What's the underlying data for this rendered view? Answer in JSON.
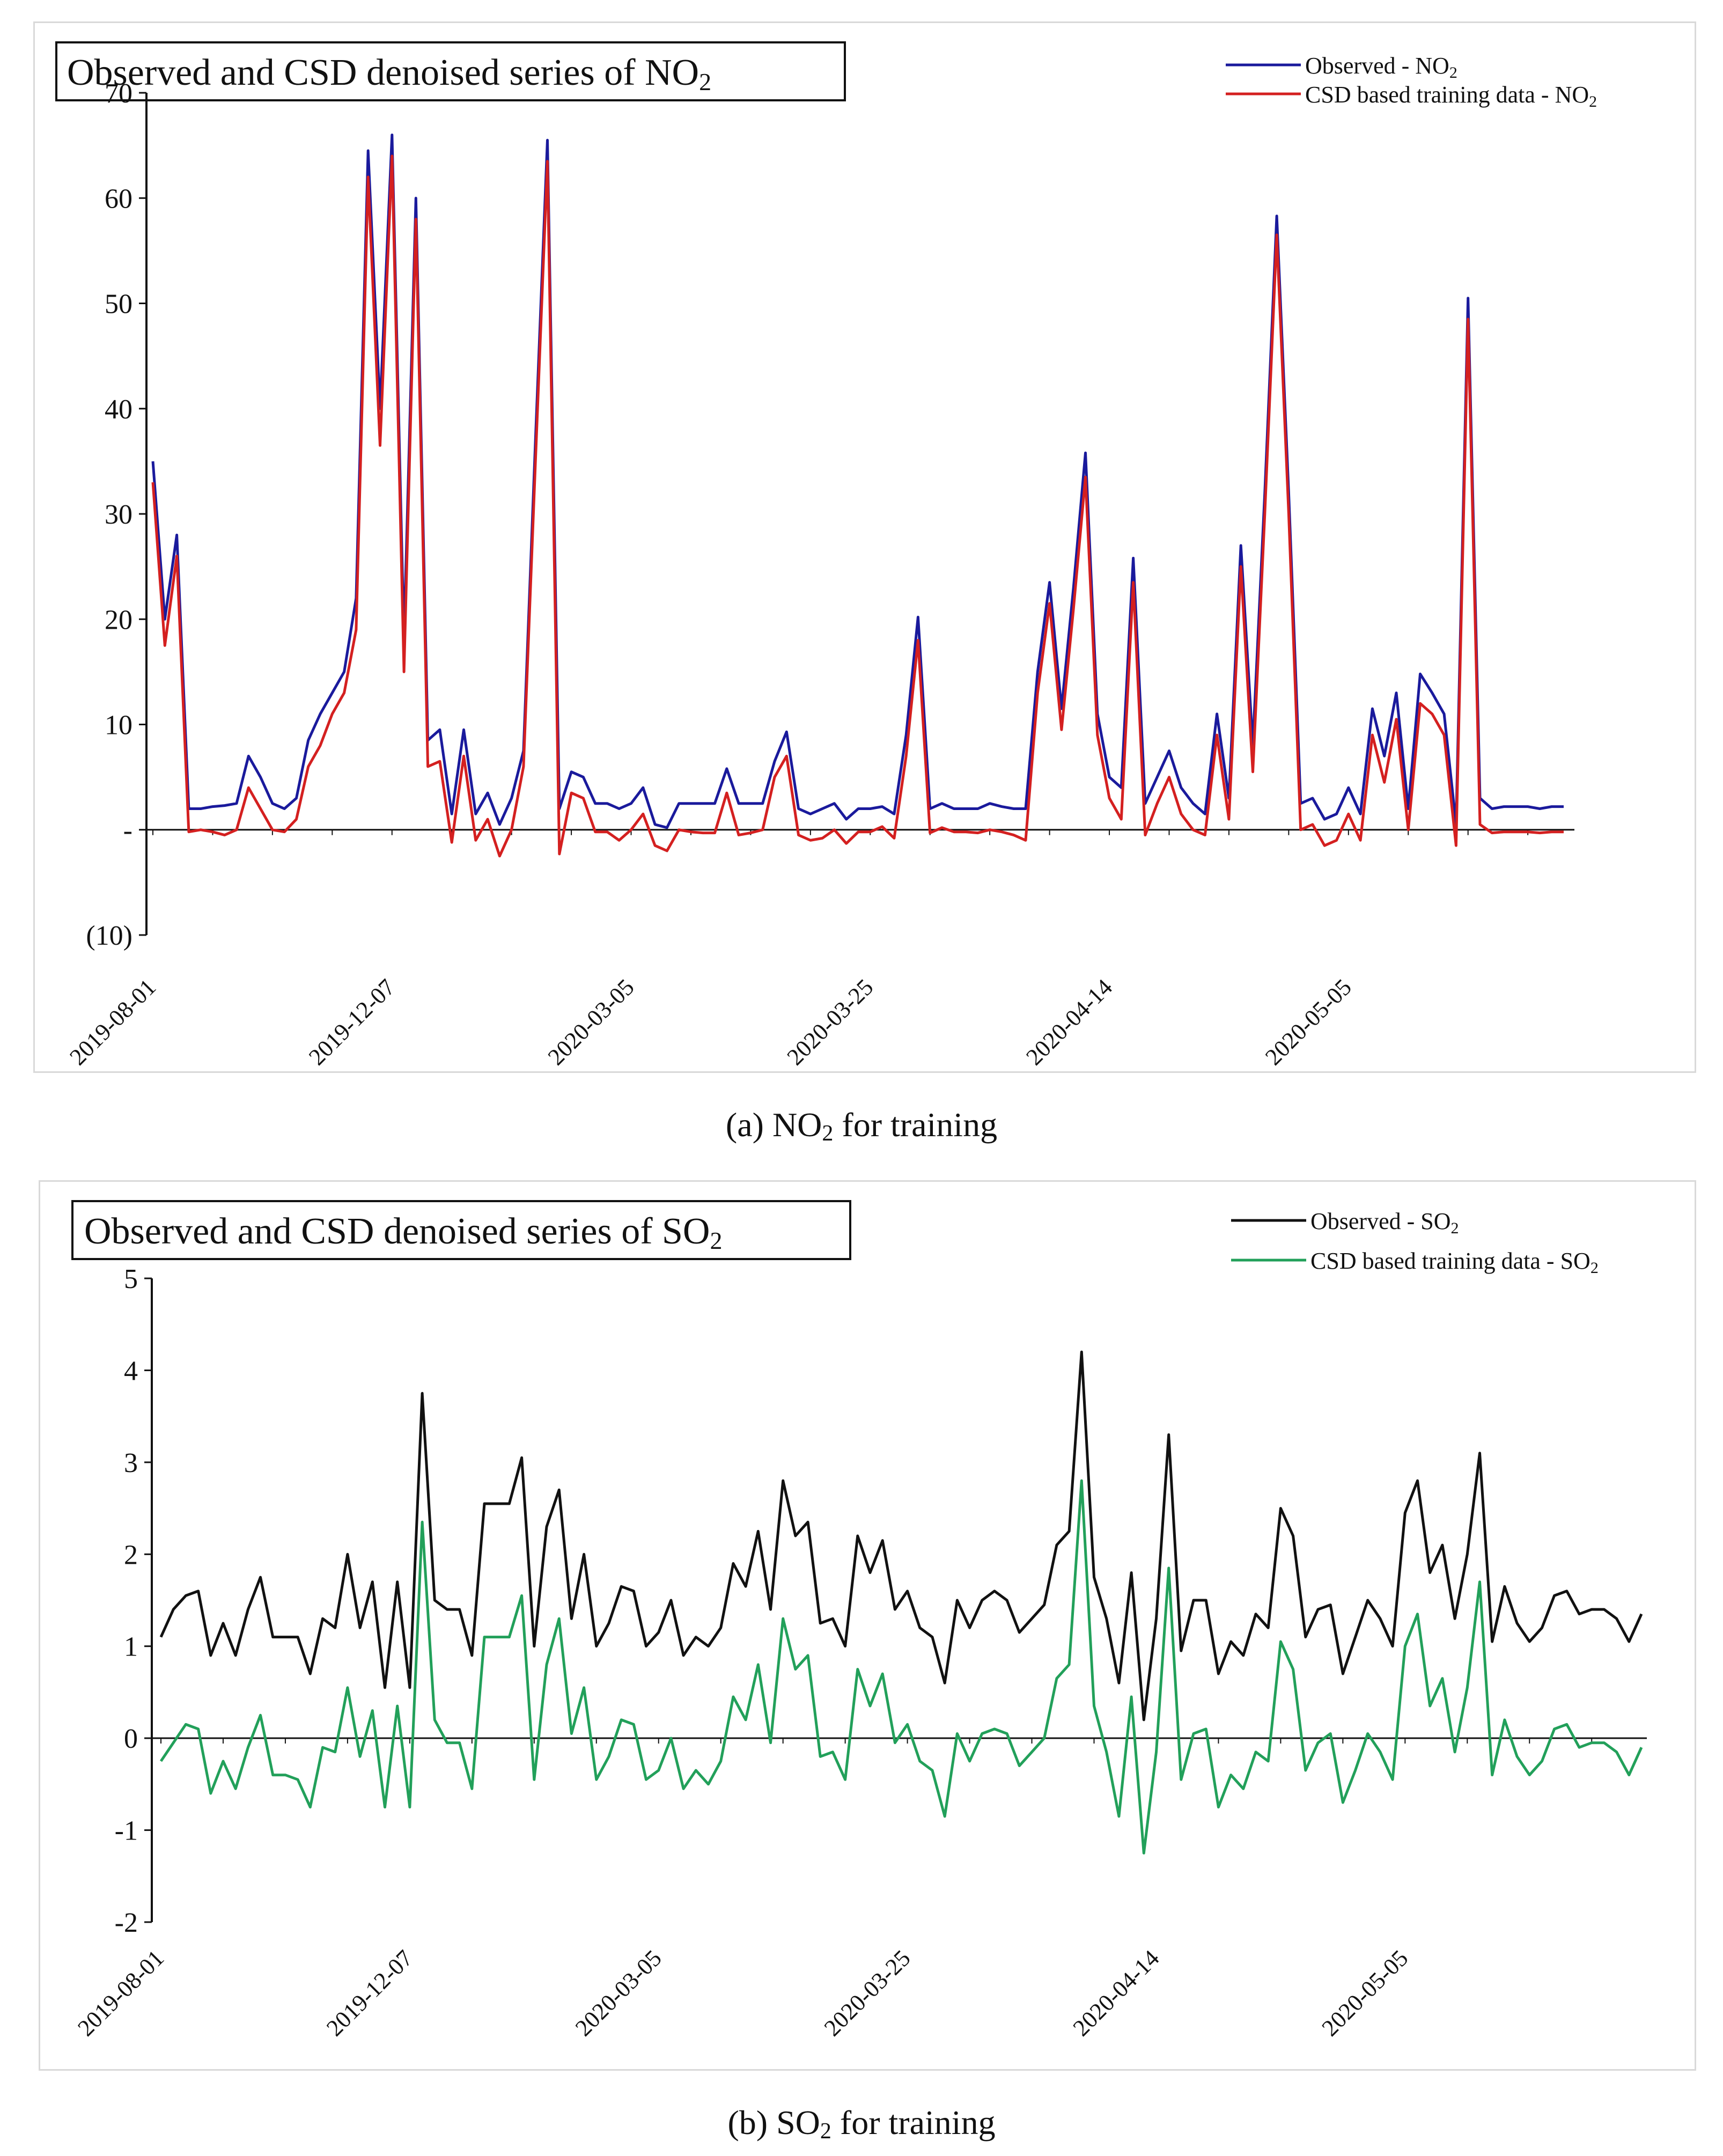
{
  "captions": {
    "a_prefix": "(a) NO",
    "a_sub": "2",
    "a_suffix": " for training",
    "b_prefix": "(b) SO",
    "b_sub": "2",
    "b_suffix": " for training"
  },
  "chart_data": [
    {
      "type": "line",
      "title_main": "Observed and CSD denoised series of NO",
      "title_sub": "2",
      "xlabel": "",
      "ylabel": "",
      "ylim": [
        -10,
        70
      ],
      "yticks": [
        70,
        60,
        50,
        40,
        30,
        20,
        10,
        0,
        -10
      ],
      "ytick_labels": [
        "70",
        "60",
        "50",
        "40",
        "30",
        "20",
        "10",
        "-",
        "(10)"
      ],
      "x_labels": [
        "2019-08-01",
        "2019-12-07",
        "2020-03-05",
        "2020-03-25",
        "2020-04-14",
        "2020-05-05"
      ],
      "x_label_index": [
        0,
        20,
        40,
        60,
        80,
        100
      ],
      "legend_position": "top-right",
      "colors": {
        "observed": "#1a1a9c",
        "training": "#d42020"
      },
      "series": [
        {
          "name_main": "Observed - NO",
          "name_sub": "2",
          "color": "#1a1a9c",
          "values": [
            35,
            20,
            28,
            2,
            2,
            2.2,
            2.3,
            2.5,
            7,
            5,
            2.5,
            2,
            3,
            8.5,
            11,
            13,
            15,
            22,
            64.5,
            40,
            66,
            18,
            60,
            8.5,
            9.5,
            1.5,
            9.5,
            1.5,
            3.5,
            0.5,
            3,
            7.5,
            37,
            65.5,
            2,
            5.5,
            5,
            2.5,
            2.5,
            2,
            2.5,
            4,
            0.5,
            0.2,
            2.5,
            2.5,
            2.5,
            2.5,
            5.8,
            2.5,
            2.5,
            2.5,
            6.5,
            9.3,
            2,
            1.5,
            2,
            2.5,
            1,
            2,
            2,
            2.2,
            1.5,
            9,
            20.2,
            2,
            2.5,
            2,
            2,
            2,
            2.5,
            2.2,
            2,
            2,
            15,
            23.5,
            11.5,
            23,
            35.8,
            11,
            5,
            4,
            25.8,
            2.5,
            5,
            7.5,
            4,
            2.5,
            1.5,
            11,
            3,
            27,
            8,
            32,
            58.3,
            32,
            2.5,
            3,
            1,
            1.5,
            4,
            1.5,
            11.5,
            7,
            13,
            2,
            14.8,
            13,
            11,
            0.5,
            50.5,
            3,
            2,
            2.2,
            2.2,
            2.2,
            2,
            2.2,
            2.2
          ]
        },
        {
          "name_main": "CSD based training data - NO",
          "name_sub": "2",
          "color": "#d42020",
          "values": [
            33,
            17.5,
            26,
            -0.2,
            0,
            -0.2,
            -0.5,
            0,
            4,
            2,
            0,
            -0.2,
            1,
            6,
            8,
            11,
            13,
            19,
            62,
            36.5,
            64,
            15,
            58,
            6,
            6.5,
            -1.2,
            7,
            -1,
            1,
            -2.5,
            0,
            6,
            35,
            63.5,
            -2.3,
            3.5,
            3,
            -0.2,
            -0.2,
            -1,
            0,
            1.5,
            -1.5,
            -2,
            0,
            -0.2,
            -0.3,
            -0.3,
            3.5,
            -0.5,
            -0.3,
            0,
            5,
            7,
            -0.5,
            -1,
            -0.8,
            0,
            -1.3,
            -0.2,
            -0.2,
            0.3,
            -0.8,
            7,
            18,
            -0.3,
            0.2,
            -0.2,
            -0.2,
            -0.3,
            0,
            -0.2,
            -0.5,
            -1,
            13,
            21.5,
            9.5,
            21,
            33.5,
            9,
            3,
            1,
            23.5,
            -0.5,
            2.5,
            5,
            1.5,
            0,
            -0.5,
            9,
            1,
            25,
            5.5,
            30,
            56.5,
            30,
            0,
            0.5,
            -1.5,
            -1,
            1.5,
            -1,
            9,
            4.5,
            10.5,
            0,
            12,
            11,
            9,
            -1.5,
            48.5,
            0.5,
            -0.3,
            -0.2,
            -0.2,
            -0.2,
            -0.3,
            -0.2,
            -0.2
          ]
        }
      ]
    },
    {
      "type": "line",
      "title_main": "Observed and CSD denoised series of SO",
      "title_sub": "2",
      "xlabel": "",
      "ylabel": "",
      "ylim": [
        -2,
        5
      ],
      "yticks": [
        5,
        4,
        3,
        2,
        1,
        0,
        -1,
        -2
      ],
      "ytick_labels": [
        "5",
        "4",
        "3",
        "2",
        "1",
        "0",
        "-1",
        "-2"
      ],
      "x_labels": [
        "2019-08-01",
        "2019-12-07",
        "2020-03-05",
        "2020-03-25",
        "2020-04-14",
        "2020-05-05"
      ],
      "x_label_index": [
        0,
        20,
        40,
        60,
        80,
        100
      ],
      "legend_position": "top-right",
      "colors": {
        "observed": "#111111",
        "training": "#22a05a"
      },
      "series": [
        {
          "name_main": "Observed - SO",
          "name_sub": "2",
          "color": "#111111",
          "values": [
            1.1,
            1.4,
            1.55,
            1.6,
            0.9,
            1.25,
            0.9,
            1.4,
            1.75,
            1.1,
            1.1,
            1.1,
            0.7,
            1.3,
            1.2,
            2,
            1.2,
            1.7,
            0.55,
            1.7,
            0.55,
            3.75,
            1.5,
            1.4,
            1.4,
            0.9,
            2.55,
            2.55,
            2.55,
            3.05,
            1,
            2.3,
            2.7,
            1.3,
            2,
            1,
            1.25,
            1.65,
            1.6,
            1,
            1.15,
            1.5,
            0.9,
            1.1,
            1,
            1.2,
            1.9,
            1.65,
            2.25,
            1.4,
            2.8,
            2.2,
            2.35,
            1.25,
            1.3,
            1,
            2.2,
            1.8,
            2.15,
            1.4,
            1.6,
            1.2,
            1.1,
            0.6,
            1.5,
            1.2,
            1.5,
            1.6,
            1.5,
            1.15,
            1.3,
            1.45,
            2.1,
            2.25,
            4.2,
            1.75,
            1.3,
            0.6,
            1.8,
            0.2,
            1.3,
            3.3,
            0.95,
            1.5,
            1.5,
            0.7,
            1.05,
            0.9,
            1.35,
            1.2,
            2.5,
            2.2,
            1.1,
            1.4,
            1.45,
            0.7,
            1.1,
            1.5,
            1.3,
            1,
            2.45,
            2.8,
            1.8,
            2.1,
            1.3,
            2,
            3.1,
            1.05,
            1.65,
            1.25,
            1.05,
            1.2,
            1.55,
            1.6,
            1.35,
            1.4,
            1.4,
            1.3,
            1.05,
            1.35
          ]
        },
        {
          "name_main": "CSD based training data - SO",
          "name_sub": "2",
          "color": "#22a05a",
          "values": [
            -0.25,
            -0.05,
            0.15,
            0.1,
            -0.6,
            -0.25,
            -0.55,
            -0.1,
            0.25,
            -0.4,
            -0.4,
            -0.45,
            -0.75,
            -0.1,
            -0.15,
            0.55,
            -0.2,
            0.3,
            -0.75,
            0.35,
            -0.75,
            2.35,
            0.2,
            -0.05,
            -0.05,
            -0.55,
            1.1,
            1.1,
            1.1,
            1.55,
            -0.45,
            0.8,
            1.3,
            0.05,
            0.55,
            -0.45,
            -0.2,
            0.2,
            0.15,
            -0.45,
            -0.35,
            0,
            -0.55,
            -0.35,
            -0.5,
            -0.25,
            0.45,
            0.2,
            0.8,
            -0.05,
            1.3,
            0.75,
            0.9,
            -0.2,
            -0.15,
            -0.45,
            0.75,
            0.35,
            0.7,
            -0.05,
            0.15,
            -0.25,
            -0.35,
            -0.85,
            0.05,
            -0.25,
            0.05,
            0.1,
            0.05,
            -0.3,
            -0.15,
            0,
            0.65,
            0.8,
            2.8,
            0.35,
            -0.15,
            -0.85,
            0.45,
            -1.25,
            -0.15,
            1.85,
            -0.45,
            0.05,
            0.1,
            -0.75,
            -0.4,
            -0.55,
            -0.15,
            -0.25,
            1.05,
            0.75,
            -0.35,
            -0.05,
            0.05,
            -0.7,
            -0.35,
            0.05,
            -0.15,
            -0.45,
            1,
            1.35,
            0.35,
            0.65,
            -0.15,
            0.55,
            1.7,
            -0.4,
            0.2,
            -0.2,
            -0.4,
            -0.25,
            0.1,
            0.15,
            -0.1,
            -0.05,
            -0.05,
            -0.15,
            -0.4,
            -0.1
          ]
        }
      ]
    }
  ]
}
